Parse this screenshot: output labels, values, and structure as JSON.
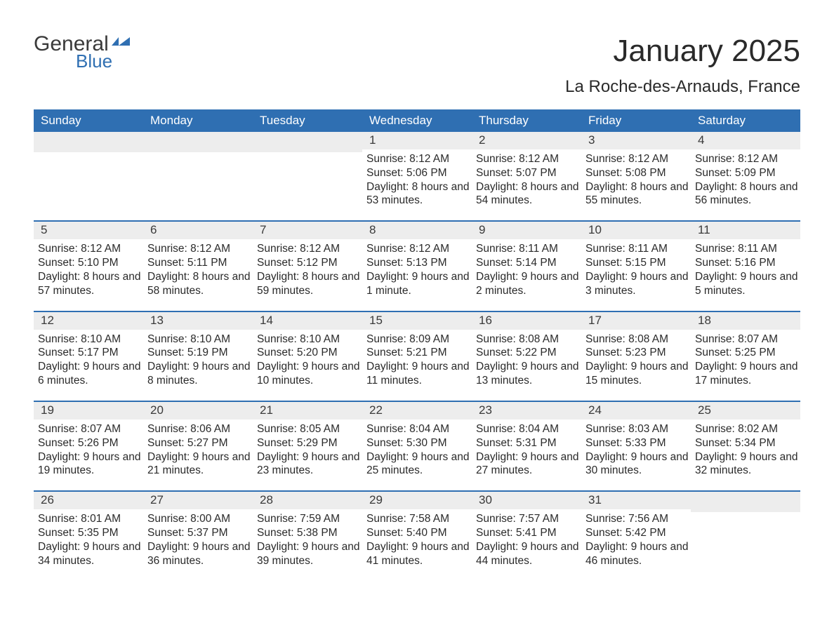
{
  "brand": {
    "word1": "General",
    "word2": "Blue",
    "word1_color": "#3a3a3a",
    "word2_color": "#2f6fb2",
    "mark_color": "#2f6fb2"
  },
  "title": "January 2025",
  "location": "La Roche-des-Arnauds, France",
  "colors": {
    "header_bg": "#2f6fb2",
    "header_text": "#ffffff",
    "daynum_bg": "#ededed",
    "week_divider": "#2f6fb2",
    "body_text": "#2a2a2a",
    "page_bg": "#ffffff"
  },
  "weekdays": [
    "Sunday",
    "Monday",
    "Tuesday",
    "Wednesday",
    "Thursday",
    "Friday",
    "Saturday"
  ],
  "labels": {
    "sunrise": "Sunrise",
    "sunset": "Sunset",
    "daylight": "Daylight"
  },
  "weeks": [
    [
      {
        "num": "",
        "empty": true
      },
      {
        "num": "",
        "empty": true
      },
      {
        "num": "",
        "empty": true
      },
      {
        "num": "1",
        "sunrise": "8:12 AM",
        "sunset": "5:06 PM",
        "daylight": "8 hours and 53 minutes."
      },
      {
        "num": "2",
        "sunrise": "8:12 AM",
        "sunset": "5:07 PM",
        "daylight": "8 hours and 54 minutes."
      },
      {
        "num": "3",
        "sunrise": "8:12 AM",
        "sunset": "5:08 PM",
        "daylight": "8 hours and 55 minutes."
      },
      {
        "num": "4",
        "sunrise": "8:12 AM",
        "sunset": "5:09 PM",
        "daylight": "8 hours and 56 minutes."
      }
    ],
    [
      {
        "num": "5",
        "sunrise": "8:12 AM",
        "sunset": "5:10 PM",
        "daylight": "8 hours and 57 minutes."
      },
      {
        "num": "6",
        "sunrise": "8:12 AM",
        "sunset": "5:11 PM",
        "daylight": "8 hours and 58 minutes."
      },
      {
        "num": "7",
        "sunrise": "8:12 AM",
        "sunset": "5:12 PM",
        "daylight": "8 hours and 59 minutes."
      },
      {
        "num": "8",
        "sunrise": "8:12 AM",
        "sunset": "5:13 PM",
        "daylight": "9 hours and 1 minute."
      },
      {
        "num": "9",
        "sunrise": "8:11 AM",
        "sunset": "5:14 PM",
        "daylight": "9 hours and 2 minutes."
      },
      {
        "num": "10",
        "sunrise": "8:11 AM",
        "sunset": "5:15 PM",
        "daylight": "9 hours and 3 minutes."
      },
      {
        "num": "11",
        "sunrise": "8:11 AM",
        "sunset": "5:16 PM",
        "daylight": "9 hours and 5 minutes."
      }
    ],
    [
      {
        "num": "12",
        "sunrise": "8:10 AM",
        "sunset": "5:17 PM",
        "daylight": "9 hours and 6 minutes."
      },
      {
        "num": "13",
        "sunrise": "8:10 AM",
        "sunset": "5:19 PM",
        "daylight": "9 hours and 8 minutes."
      },
      {
        "num": "14",
        "sunrise": "8:10 AM",
        "sunset": "5:20 PM",
        "daylight": "9 hours and 10 minutes."
      },
      {
        "num": "15",
        "sunrise": "8:09 AM",
        "sunset": "5:21 PM",
        "daylight": "9 hours and 11 minutes."
      },
      {
        "num": "16",
        "sunrise": "8:08 AM",
        "sunset": "5:22 PM",
        "daylight": "9 hours and 13 minutes."
      },
      {
        "num": "17",
        "sunrise": "8:08 AM",
        "sunset": "5:23 PM",
        "daylight": "9 hours and 15 minutes."
      },
      {
        "num": "18",
        "sunrise": "8:07 AM",
        "sunset": "5:25 PM",
        "daylight": "9 hours and 17 minutes."
      }
    ],
    [
      {
        "num": "19",
        "sunrise": "8:07 AM",
        "sunset": "5:26 PM",
        "daylight": "9 hours and 19 minutes."
      },
      {
        "num": "20",
        "sunrise": "8:06 AM",
        "sunset": "5:27 PM",
        "daylight": "9 hours and 21 minutes."
      },
      {
        "num": "21",
        "sunrise": "8:05 AM",
        "sunset": "5:29 PM",
        "daylight": "9 hours and 23 minutes."
      },
      {
        "num": "22",
        "sunrise": "8:04 AM",
        "sunset": "5:30 PM",
        "daylight": "9 hours and 25 minutes."
      },
      {
        "num": "23",
        "sunrise": "8:04 AM",
        "sunset": "5:31 PM",
        "daylight": "9 hours and 27 minutes."
      },
      {
        "num": "24",
        "sunrise": "8:03 AM",
        "sunset": "5:33 PM",
        "daylight": "9 hours and 30 minutes."
      },
      {
        "num": "25",
        "sunrise": "8:02 AM",
        "sunset": "5:34 PM",
        "daylight": "9 hours and 32 minutes."
      }
    ],
    [
      {
        "num": "26",
        "sunrise": "8:01 AM",
        "sunset": "5:35 PM",
        "daylight": "9 hours and 34 minutes."
      },
      {
        "num": "27",
        "sunrise": "8:00 AM",
        "sunset": "5:37 PM",
        "daylight": "9 hours and 36 minutes."
      },
      {
        "num": "28",
        "sunrise": "7:59 AM",
        "sunset": "5:38 PM",
        "daylight": "9 hours and 39 minutes."
      },
      {
        "num": "29",
        "sunrise": "7:58 AM",
        "sunset": "5:40 PM",
        "daylight": "9 hours and 41 minutes."
      },
      {
        "num": "30",
        "sunrise": "7:57 AM",
        "sunset": "5:41 PM",
        "daylight": "9 hours and 44 minutes."
      },
      {
        "num": "31",
        "sunrise": "7:56 AM",
        "sunset": "5:42 PM",
        "daylight": "9 hours and 46 minutes."
      },
      {
        "num": "",
        "empty": true
      }
    ]
  ]
}
